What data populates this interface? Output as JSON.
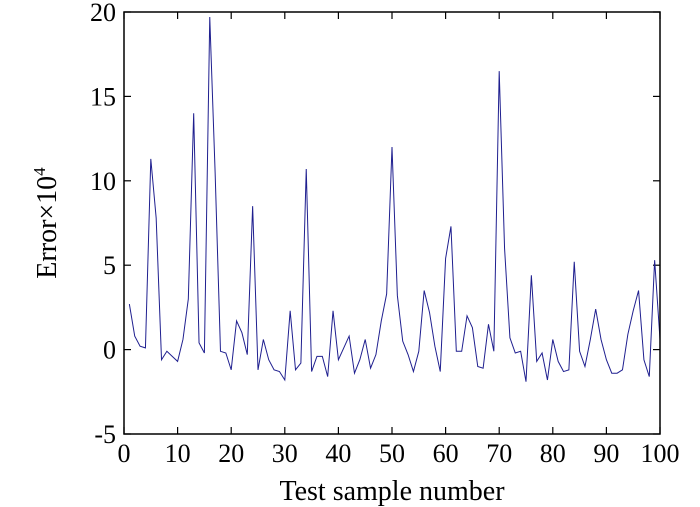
{
  "chart_data": {
    "type": "line",
    "xlabel": "Test sample number",
    "ylabel_base": "Error×10",
    "ylabel_sup": "4",
    "xlim": [
      0,
      100
    ],
    "ylim": [
      -5,
      20
    ],
    "xticks": [
      0,
      10,
      20,
      30,
      40,
      50,
      60,
      70,
      80,
      90,
      100
    ],
    "yticks": [
      -5,
      0,
      5,
      10,
      15,
      20
    ],
    "line_color": "#1f1f8f",
    "grid": false,
    "series": [
      {
        "x": [
          1,
          2,
          3,
          4,
          5,
          6,
          7,
          8,
          9,
          10,
          11,
          12,
          13,
          14,
          15,
          16,
          17,
          18,
          19,
          20,
          21,
          22,
          23,
          24,
          25,
          26,
          27,
          28,
          29,
          30,
          31,
          32,
          33,
          34,
          35,
          36,
          37,
          38,
          39,
          40,
          41,
          42,
          43,
          44,
          45,
          46,
          47,
          48,
          49,
          50,
          51,
          52,
          53,
          54,
          55,
          56,
          57,
          58,
          59,
          60,
          61,
          62,
          63,
          64,
          65,
          66,
          67,
          68,
          69,
          70,
          71,
          72,
          73,
          74,
          75,
          76,
          77,
          78,
          79,
          80,
          81,
          82,
          83,
          84,
          85,
          86,
          87,
          88,
          89,
          90,
          91,
          92,
          93,
          94,
          95,
          96,
          97,
          98,
          99,
          100
        ],
        "y": [
          2.7,
          0.8,
          0.2,
          0.1,
          11.3,
          7.8,
          -0.6,
          -0.1,
          -0.4,
          -0.7,
          0.6,
          3.0,
          14.0,
          0.4,
          -0.2,
          19.7,
          10.5,
          -0.1,
          -0.2,
          -1.2,
          1.7,
          1.0,
          -0.3,
          8.5,
          -1.2,
          0.6,
          -0.6,
          -1.2,
          -1.3,
          -1.8,
          2.3,
          -1.2,
          -0.8,
          10.7,
          -1.3,
          -0.4,
          -0.4,
          -1.6,
          2.3,
          -0.6,
          0.1,
          0.8,
          -1.4,
          -0.6,
          0.6,
          -1.1,
          -0.3,
          1.7,
          3.3,
          12.0,
          3.2,
          0.5,
          -0.3,
          -1.3,
          -0.1,
          3.5,
          2.2,
          0.2,
          -1.3,
          5.4,
          7.3,
          -0.1,
          -0.1,
          2.0,
          1.3,
          -1.0,
          -1.1,
          1.5,
          -0.1,
          16.5,
          6.0,
          0.7,
          -0.2,
          -0.1,
          -1.9,
          4.4,
          -0.7,
          -0.2,
          -1.8,
          0.6,
          -0.7,
          -1.3,
          -1.2,
          5.2,
          -0.1,
          -1.0,
          0.6,
          2.4,
          0.6,
          -0.6,
          -1.4,
          -1.4,
          -1.2,
          0.9,
          2.3,
          3.5,
          -0.6,
          -1.6,
          5.3,
          0.6
        ]
      }
    ]
  }
}
